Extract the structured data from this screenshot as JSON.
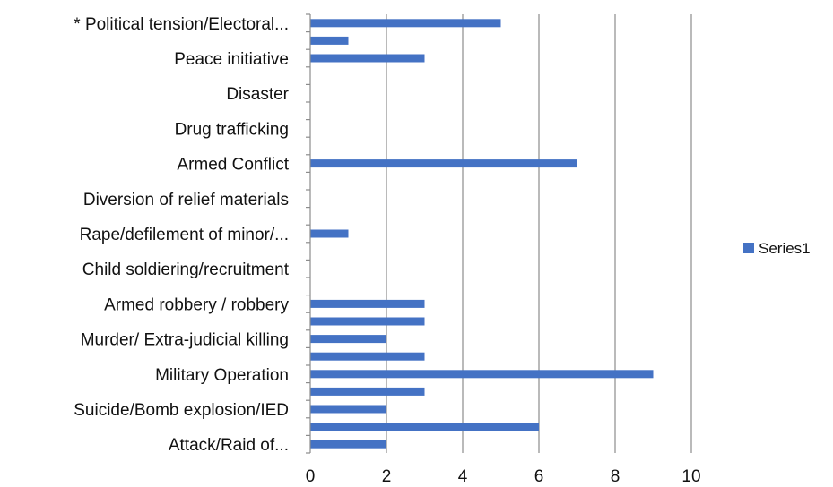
{
  "chart_data": {
    "type": "bar",
    "orientation": "horizontal",
    "title": "",
    "xlabel": "",
    "ylabel": "",
    "xlim": [
      0,
      10
    ],
    "x_ticks": [
      "0",
      "2",
      "4",
      "6",
      "8",
      "10"
    ],
    "grid": "vertical",
    "legend": {
      "position": "right",
      "entries": [
        "Series1"
      ]
    },
    "series_color": "#4472C4",
    "categories": [
      {
        "label": "* Political tension/Electoral...",
        "value": 5
      },
      {
        "label": "",
        "value": 1
      },
      {
        "label": "Peace initiative",
        "value": 3
      },
      {
        "label": "",
        "value": 0
      },
      {
        "label": "Disaster",
        "value": 0
      },
      {
        "label": "",
        "value": 0
      },
      {
        "label": "Drug trafficking",
        "value": 0
      },
      {
        "label": "",
        "value": 0
      },
      {
        "label": "Armed Conflict",
        "value": 7
      },
      {
        "label": "",
        "value": 0
      },
      {
        "label": "Diversion of relief materials",
        "value": 0
      },
      {
        "label": "",
        "value": 0
      },
      {
        "label": "Rape/defilement of minor/...",
        "value": 1
      },
      {
        "label": "",
        "value": 0
      },
      {
        "label": "Child soldiering/recruitment",
        "value": 0
      },
      {
        "label": "",
        "value": 0
      },
      {
        "label": "Armed robbery / robbery",
        "value": 3
      },
      {
        "label": "",
        "value": 3
      },
      {
        "label": "Murder/ Extra-judicial killing",
        "value": 2
      },
      {
        "label": "",
        "value": 3
      },
      {
        "label": "Military Operation",
        "value": 9
      },
      {
        "label": "",
        "value": 3
      },
      {
        "label": "Suicide/Bomb explosion/IED",
        "value": 2
      },
      {
        "label": "",
        "value": 6
      },
      {
        "label": "Attack/Raid of...",
        "value": 2
      }
    ],
    "series": [
      {
        "name": "Series1",
        "values": [
          5,
          1,
          3,
          0,
          0,
          0,
          0,
          0,
          7,
          0,
          0,
          0,
          1,
          0,
          0,
          0,
          3,
          3,
          2,
          3,
          9,
          3,
          2,
          6,
          2
        ]
      }
    ]
  }
}
